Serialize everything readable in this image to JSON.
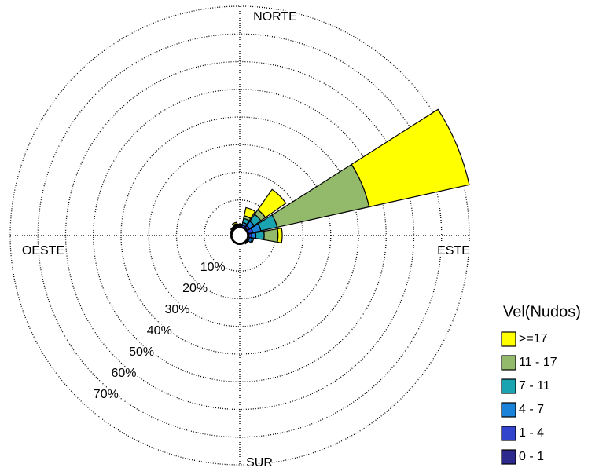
{
  "chart_data": {
    "type": "windrose",
    "legend_title": "Vel(Nudos)",
    "direction_labels": {
      "north": "NORTE",
      "east": "ESTE",
      "south": "SUR",
      "west": "OESTE"
    },
    "theta": [
      0,
      22.5,
      45,
      67.5,
      90,
      112.5,
      135,
      157.5,
      180,
      202.5,
      225,
      247.5,
      270,
      292.5,
      315,
      337.5
    ],
    "series": [
      {
        "name": ">=17",
        "color": "#ffff00",
        "values": [
          0,
          3,
          9,
          37,
          1.5,
          0,
          0,
          0,
          0,
          0,
          0,
          0,
          0,
          0,
          0,
          0.5
        ]
      },
      {
        "name": "11 - 17",
        "color": "#93b96b",
        "values": [
          0,
          1,
          2,
          34,
          5,
          0,
          0,
          0,
          0,
          0,
          0,
          0,
          0,
          0,
          0,
          0.3
        ]
      },
      {
        "name": "7 - 11",
        "color": "#1aa3b0",
        "values": [
          0.3,
          1.5,
          3,
          6,
          3,
          0.5,
          0,
          0,
          0,
          0,
          0,
          0,
          0,
          0,
          0.2,
          0.3
        ]
      },
      {
        "name": "4 - 7",
        "color": "#1a82d9",
        "values": [
          0.3,
          1,
          2,
          3,
          1.5,
          1,
          0.3,
          0,
          0,
          0,
          0,
          0,
          0,
          0.2,
          0.3,
          0.3
        ]
      },
      {
        "name": "1 - 4",
        "color": "#3344cc",
        "values": [
          0.4,
          0.7,
          1,
          1.5,
          1,
          0.5,
          0.3,
          0.2,
          0.2,
          0.2,
          0.2,
          0.2,
          0.2,
          0.3,
          0.3,
          0.4
        ]
      },
      {
        "name": "0 - 1",
        "color": "#2c2a8c",
        "values": [
          0.3,
          0.3,
          0.5,
          0.5,
          0.5,
          0.3,
          0.2,
          0.2,
          0.2,
          0.2,
          0.2,
          0.2,
          0.2,
          0.2,
          0.3,
          0.3
        ]
      }
    ],
    "rlim": [
      0,
      80
    ],
    "rticks": [
      {
        "value": 10,
        "label": "10%"
      },
      {
        "value": 20,
        "label": "20%"
      },
      {
        "value": 30,
        "label": "30%"
      },
      {
        "value": 40,
        "label": "40%"
      },
      {
        "value": 50,
        "label": "50%"
      },
      {
        "value": 60,
        "label": "60%"
      },
      {
        "value": 70,
        "label": "70%"
      }
    ],
    "grid": true
  }
}
